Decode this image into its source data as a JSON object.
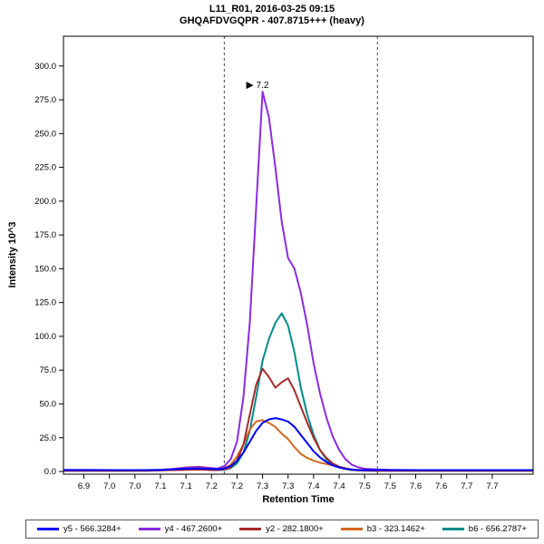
{
  "chart_data": {
    "type": "line",
    "title": "L11_R01, 2016-03-25 09:15",
    "subtitle": "GHQAFDVGQPR - 407.8715+++ (heavy)",
    "xlabel": "Retention Time",
    "ylabel": "Intensity 10^3",
    "xlim": [
      6.86,
      7.78
    ],
    "ylim": [
      -2,
      322
    ],
    "grid": false,
    "legend_position": "bottom",
    "x_ticks": {
      "values": [
        6.9,
        6.95,
        7.0,
        7.05,
        7.1,
        7.15,
        7.2,
        7.25,
        7.3,
        7.35,
        7.4,
        7.45,
        7.5,
        7.55,
        7.6,
        7.65,
        7.7
      ],
      "labels": [
        "6.9",
        "7.0",
        "7.0",
        "7.1",
        "7.1",
        "7.2",
        "7.2",
        "7.3",
        "7.3",
        "7.4",
        "7.4",
        "7.5",
        "7.5",
        "7.6",
        "7.6",
        "7.7",
        "7.7"
      ]
    },
    "y_ticks": {
      "values": [
        0,
        25,
        50,
        75,
        100,
        125,
        150,
        175,
        200,
        225,
        250,
        275,
        300
      ],
      "labels": [
        "0.0",
        "25.0",
        "50.0",
        "75.0",
        "100.0",
        "125.0",
        "150.0",
        "175.0",
        "200.0",
        "225.0",
        "250.0",
        "275.0",
        "300.0"
      ]
    },
    "x": [
      6.86,
      6.9,
      6.95,
      7.0,
      7.025,
      7.05,
      7.075,
      7.1,
      7.125,
      7.15,
      7.1625,
      7.175,
      7.1875,
      7.2,
      7.2125,
      7.225,
      7.2375,
      7.25,
      7.2625,
      7.275,
      7.2875,
      7.3,
      7.3125,
      7.325,
      7.3375,
      7.35,
      7.3625,
      7.375,
      7.3875,
      7.4,
      7.4125,
      7.425,
      7.4375,
      7.45,
      7.475,
      7.5,
      7.55,
      7.6,
      7.65,
      7.7,
      7.75,
      7.78
    ],
    "series": [
      {
        "name": "y5 - 566.3284+",
        "color": "#0000FF",
        "values": [
          1,
          1,
          1,
          1,
          1,
          1.2,
          1.6,
          2,
          2.2,
          1.8,
          1.6,
          2.2,
          4,
          8,
          14,
          22,
          30,
          36,
          38.5,
          39.5,
          38.5,
          37,
          33,
          27,
          21,
          15,
          10.5,
          7,
          4.5,
          3,
          2,
          1.4,
          1.1,
          1,
          1,
          1,
          1,
          1,
          1,
          1,
          1,
          1
        ]
      },
      {
        "name": "y4 - 467.2600+",
        "color": "#8A2BE2",
        "values": [
          1.2,
          1.2,
          1,
          1,
          1,
          1.2,
          1.8,
          2.8,
          3.2,
          2.4,
          2.2,
          4,
          9,
          22,
          55,
          110,
          195,
          281,
          262,
          225,
          185,
          158,
          150,
          132,
          108,
          80,
          58,
          40,
          26,
          16,
          9,
          5,
          3,
          2,
          1.5,
          1.2,
          1,
          1,
          1,
          1,
          1,
          1
        ]
      },
      {
        "name": "y2 - 282.1800+",
        "color": "#A52A2A",
        "values": [
          0.6,
          0.6,
          0.6,
          0.6,
          0.6,
          0.8,
          1,
          1.2,
          1.4,
          1,
          1,
          1.5,
          3,
          8,
          20,
          42,
          64,
          76,
          70,
          62,
          66,
          69,
          60,
          48,
          36,
          25,
          16,
          10,
          6,
          3.5,
          2,
          1.2,
          0.8,
          0.7,
          0.6,
          0.6,
          0.6,
          0.6,
          0.6,
          0.6,
          0.6,
          0.6
        ]
      },
      {
        "name": "b3 - 323.1462+",
        "color": "#D2691E",
        "values": [
          0.5,
          0.5,
          0.5,
          0.5,
          0.6,
          1,
          1.8,
          3,
          3.5,
          2.5,
          1.8,
          2.5,
          5,
          11,
          20,
          31,
          37,
          38,
          36,
          33,
          28,
          24,
          18,
          13,
          10,
          8,
          6.5,
          5.5,
          4.5,
          3.5,
          2.5,
          1.5,
          1,
          0.8,
          0.5,
          0.5,
          0.5,
          0.5,
          0.5,
          0.5,
          0.5,
          0.5
        ]
      },
      {
        "name": "b6 - 656.2787+",
        "color": "#008B8B",
        "values": [
          0.5,
          0.5,
          0.5,
          0.5,
          0.5,
          0.8,
          1.2,
          1.5,
          1.8,
          1.2,
          1,
          1.2,
          2.5,
          6,
          14,
          30,
          55,
          82,
          98,
          110,
          117,
          108,
          88,
          62,
          42,
          27,
          16,
          9,
          5,
          3,
          1.8,
          1,
          0.8,
          0.6,
          0.5,
          0.5,
          0.5,
          0.5,
          0.5,
          0.5,
          0.5,
          0.5
        ]
      }
    ],
    "peak_annotation": {
      "text": "7.2",
      "x": 7.25,
      "y": 281
    },
    "integration_boundaries": [
      7.175,
      7.475
    ],
    "boundary_color": "#444444"
  }
}
